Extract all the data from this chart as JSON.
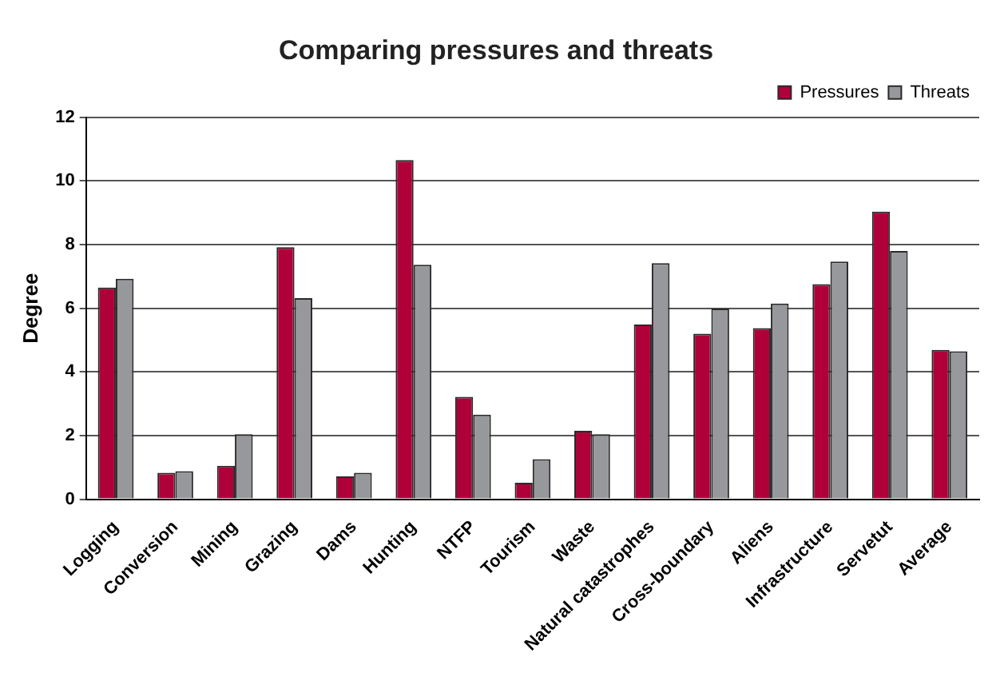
{
  "chart_data": {
    "type": "bar",
    "title": "Comparing pressures and threats",
    "ylabel": "Degree",
    "categories": [
      "Logging",
      "Conversion",
      "Mining",
      "Grazing",
      "Dams",
      "Hunting",
      "NTFP",
      "Tourism",
      "Waste",
      "Natural catastrophes",
      "Cross-boundary",
      "Aliens",
      "Infrastructure",
      "Servetut",
      "Average"
    ],
    "series": [
      {
        "name": "Pressures",
        "color": "#b0003a",
        "values": [
          6.65,
          0.83,
          1.05,
          7.92,
          0.72,
          10.66,
          3.22,
          0.52,
          2.15,
          5.49,
          5.2,
          5.38,
          6.76,
          9.04,
          4.69
        ]
      },
      {
        "name": "Threats",
        "color": "#96989c",
        "values": [
          6.93,
          0.88,
          2.04,
          6.32,
          0.83,
          7.37,
          2.66,
          1.26,
          2.04,
          7.42,
          5.99,
          6.15,
          7.47,
          7.8,
          4.65
        ]
      }
    ],
    "ylim": [
      0,
      12
    ],
    "yticks": [
      0,
      2,
      4,
      6,
      8,
      10,
      12
    ],
    "grid": "y",
    "legend": "top right"
  }
}
